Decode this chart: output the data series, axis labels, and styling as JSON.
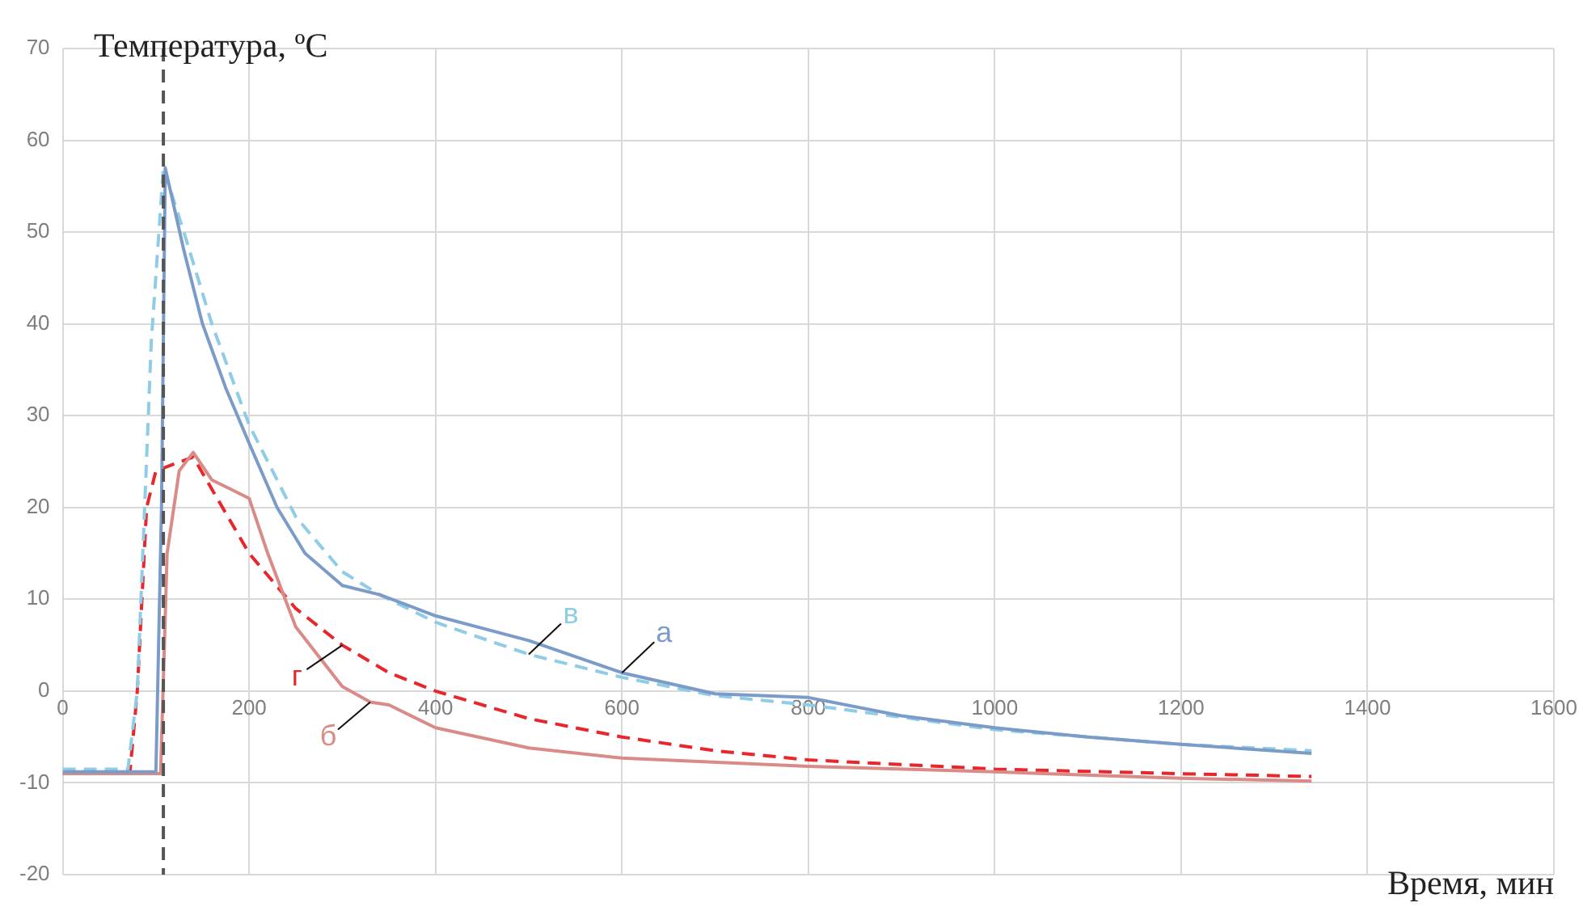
{
  "chart_data": {
    "type": "line",
    "xlabel": "Время, мин",
    "ylabel": "Температура, ºC",
    "xlim": [
      0,
      1600
    ],
    "xticks": [
      0,
      200,
      400,
      600,
      800,
      1000,
      1200,
      1400,
      1600
    ],
    "ylim": [
      -20,
      70
    ],
    "yticks": [
      -20,
      -10,
      0,
      10,
      20,
      30,
      40,
      50,
      60,
      70
    ],
    "grid": true,
    "legend": false,
    "marker": "none",
    "ref_lines": [
      {
        "axis": "x",
        "value": 108,
        "color": "#555555",
        "line_style": "dashed"
      }
    ],
    "series": [
      {
        "name": "а",
        "color": "#7b9bc9",
        "line_style": "solid",
        "x": [
          0,
          100,
          106,
          110,
          130,
          150,
          175,
          200,
          230,
          260,
          300,
          340,
          400,
          500,
          600,
          700,
          800,
          900,
          1000,
          1100,
          1200,
          1340
        ],
        "values": [
          -8.8,
          -8.8,
          20,
          57,
          48,
          40,
          33,
          27,
          20,
          15,
          11.5,
          10.5,
          8.2,
          5.5,
          2,
          -0.3,
          -0.7,
          -2.7,
          -4,
          -5,
          -5.8,
          -6.8
        ]
      },
      {
        "name": "в",
        "color": "#8fcde6",
        "line_style": "dashed",
        "x": [
          0,
          70,
          80,
          95,
          108,
          130,
          160,
          200,
          250,
          300,
          340,
          400,
          500,
          600,
          700,
          800,
          1000,
          1200,
          1340
        ],
        "values": [
          -8.5,
          -8.5,
          0,
          38,
          57,
          50,
          40,
          29,
          19,
          13,
          10.5,
          7.5,
          4,
          1.5,
          -0.5,
          -1.5,
          -4.2,
          -5.8,
          -6.5
        ]
      },
      {
        "name": "б",
        "color": "#d98b87",
        "line_style": "solid",
        "x": [
          0,
          105,
          112,
          125,
          140,
          160,
          180,
          200,
          220,
          250,
          300,
          330,
          350,
          400,
          500,
          600,
          800,
          1000,
          1200,
          1340
        ],
        "values": [
          -9,
          -9,
          15,
          24,
          26,
          23,
          22,
          21,
          15,
          7,
          0.5,
          -1.2,
          -1.5,
          -4,
          -6.2,
          -7.3,
          -8.2,
          -8.8,
          -9.5,
          -9.8
        ]
      },
      {
        "name": "г",
        "color": "#e8262b",
        "line_style": "dashed",
        "x": [
          0,
          72,
          80,
          90,
          100,
          140,
          200,
          250,
          300,
          350,
          400,
          500,
          600,
          700,
          800,
          1000,
          1200,
          1340
        ],
        "values": [
          -9,
          -9,
          0,
          20,
          24,
          25.5,
          15,
          9,
          5,
          2,
          0,
          -3,
          -5,
          -6.5,
          -7.5,
          -8.5,
          -9,
          -9.3
        ]
      }
    ]
  }
}
